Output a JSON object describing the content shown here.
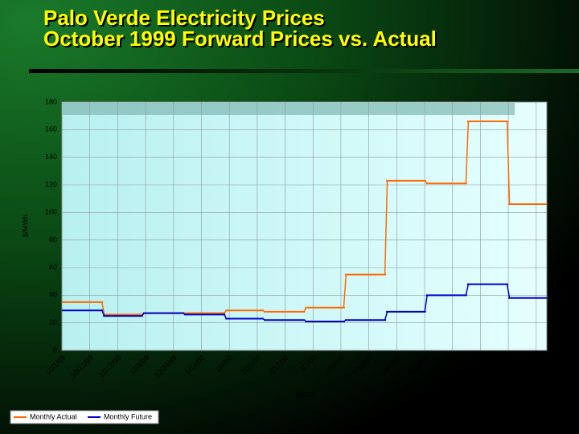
{
  "chart_data": {
    "type": "step",
    "title": "Palo Verde Electricity Prices",
    "subtitle": "October 1999 Forward Prices vs. Actual",
    "x_label": "DATE",
    "y_label": "$/MWh",
    "x": [
      "10/1/99",
      "11/1/99",
      "12/1/99",
      "1/1/00",
      "2/1/00",
      "3/1/00",
      "4/1/00",
      "5/1/00",
      "6/1/00",
      "7/1/00",
      "8/1/00",
      "9/1/00"
    ],
    "series": [
      {
        "name": "Monthly Actual",
        "color": "#ff6a00",
        "values": [
          35,
          26,
          27,
          27,
          29,
          28,
          31,
          55,
          123,
          121,
          166,
          106
        ]
      },
      {
        "name": "Monthly Future",
        "color": "#0000c8",
        "values": [
          29,
          25,
          27,
          26,
          23,
          22,
          21,
          22,
          28,
          40,
          48,
          38
        ]
      }
    ],
    "xlim": [
      "10/1/99",
      "9/30/00"
    ],
    "xticks": [
      "10/1/99",
      "10/22/99",
      "11/12/99",
      "12/3/99",
      "12/24/99",
      "1/14/00",
      "2/4/00",
      "2/25/00",
      "3/17/00",
      "4/7/00",
      "4/28/00",
      "5/19/00",
      "6/9/00",
      "6/30/00",
      "7/21/00",
      "8/11/00",
      "9/1/00",
      "9/22/00"
    ],
    "ylim": [
      0,
      180
    ],
    "yticks": [
      0,
      20,
      40,
      60,
      80,
      100,
      120,
      140,
      160,
      180
    ],
    "grid": true,
    "legend": "bottom-left"
  }
}
